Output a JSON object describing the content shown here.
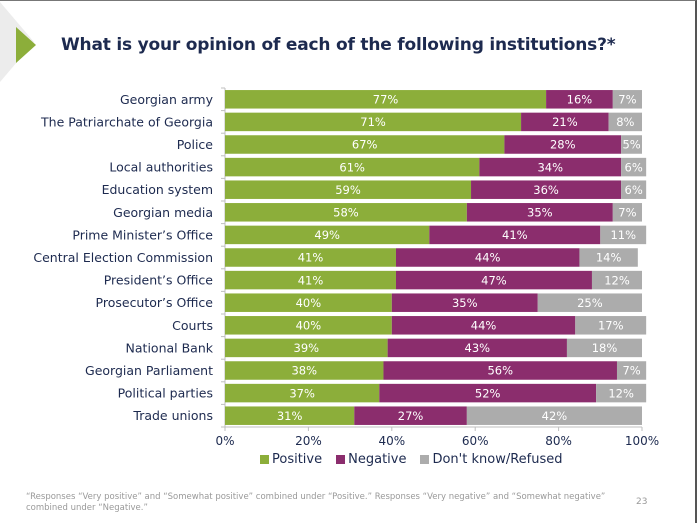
{
  "page": {
    "title": "What is your opinion of each of the following institutions?*",
    "footnote": "“Responses “Very positive” and “Somewhat positive” combined under “Positive.” Responses “Very negative” and “Somewhat negative” combined under “Negative.”",
    "page_number": "23"
  },
  "colors": {
    "positive": "#8cae3a",
    "negative": "#8b2d6d",
    "dont_know": "#acacac",
    "accent_arrow": "#8cae3a"
  },
  "chart_data": {
    "type": "bar",
    "orientation": "horizontal",
    "stacked": true,
    "title": "What is your opinion of each of the following institutions?*",
    "xlabel": "",
    "ylabel": "",
    "xlim": [
      0,
      100
    ],
    "x_ticks": [
      "0%",
      "20%",
      "40%",
      "60%",
      "80%",
      "100%"
    ],
    "legend_position": "bottom",
    "categories": [
      "Georgian army",
      "The Patriarchate of Georgia",
      "Police",
      "Local authorities",
      "Education system",
      "Georgian media",
      "Prime Minister’s Office",
      "Central Election Commission",
      "President’s Office",
      "Prosecutor’s Office",
      "Courts",
      "National Bank",
      "Georgian Parliament",
      "Political parties",
      "Trade unions"
    ],
    "series": [
      {
        "name": "Positive",
        "color": "#8cae3a",
        "values": [
          77,
          71,
          67,
          61,
          59,
          58,
          49,
          41,
          41,
          40,
          40,
          39,
          38,
          37,
          31
        ]
      },
      {
        "name": "Negative",
        "color": "#8b2d6d",
        "values": [
          16,
          21,
          28,
          34,
          36,
          35,
          41,
          44,
          47,
          35,
          44,
          43,
          56,
          52,
          27
        ]
      },
      {
        "name": "Don't know/Refused",
        "color": "#acacac",
        "values": [
          7,
          8,
          5,
          6,
          6,
          7,
          11,
          14,
          12,
          25,
          17,
          18,
          7,
          12,
          42
        ]
      }
    ]
  }
}
